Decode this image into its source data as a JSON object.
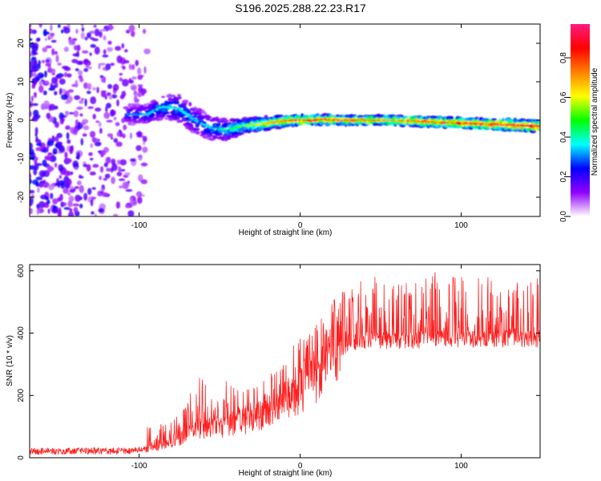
{
  "figure_title": "S196.2025.288.22.23.R17",
  "colors": {
    "axis": "#000000",
    "snr_line": "#ff2020",
    "spec_bg": "#ffffff"
  },
  "chart_data": [
    {
      "type": "heatmap",
      "name": "spectrogram",
      "xlabel": "Height of straight line (km)",
      "ylabel": "Frequency (Hz)",
      "xlim": [
        -168,
        149
      ],
      "ylim": [
        -25,
        25
      ],
      "xticks": [
        -100,
        0,
        100
      ],
      "xtick_labels": [
        "-100",
        "0",
        "100"
      ],
      "yticks": [
        -20,
        -10,
        0,
        10,
        20
      ],
      "ytick_labels": [
        "-20",
        "-10",
        "0",
        "10",
        "20"
      ],
      "noise_region_x": [
        -168,
        -95
      ],
      "ridge": {
        "x": [
          -108,
          -95,
          -85,
          -75,
          -65,
          -55,
          -45,
          -35,
          -25,
          -15,
          -5,
          5,
          15,
          25,
          40,
          55,
          70,
          85,
          100,
          115,
          130,
          145
        ],
        "y": [
          1.5,
          1.5,
          3.5,
          3.0,
          0.0,
          -2.0,
          -2.5,
          -1.5,
          -1.0,
          -0.5,
          0.0,
          0.0,
          0.2,
          0.0,
          0.0,
          0.0,
          -0.2,
          -0.5,
          -0.7,
          -1.0,
          -1.2,
          -1.5
        ],
        "amplitude": [
          0.25,
          0.3,
          0.35,
          0.35,
          0.3,
          0.35,
          0.4,
          0.5,
          0.6,
          0.7,
          0.75,
          0.8,
          0.85,
          0.8,
          0.75,
          0.7,
          0.75,
          0.8,
          0.85,
          0.85,
          0.9,
          0.9
        ],
        "spread": [
          2.5,
          2.5,
          3.0,
          3.5,
          3.5,
          3.0,
          2.5,
          2.0,
          1.8,
          1.5,
          1.4,
          1.3,
          1.2,
          1.2,
          1.2,
          1.2,
          1.3,
          1.3,
          1.3,
          1.3,
          1.4,
          1.4
        ]
      }
    },
    {
      "type": "colorbar",
      "name": "amplitude-colorbar",
      "label": "Normalized spectral amplitude",
      "range": [
        0.0,
        0.97
      ],
      "ticks": [
        0.0,
        0.2,
        0.4,
        0.6,
        0.8
      ],
      "tick_labels": [
        "0.0",
        "0.2",
        "0.4",
        "0.6",
        "0.8"
      ],
      "colormap": [
        "#ffffff",
        "#9000ff",
        "#0000ff",
        "#00ffff",
        "#00ff00",
        "#ffff00",
        "#ff8000",
        "#ff0000",
        "#ff1a80"
      ]
    },
    {
      "type": "line",
      "name": "snr",
      "xlabel": "Height of straight line (km)",
      "ylabel": "SNR (10 * v/v)",
      "xlim": [
        -168,
        149
      ],
      "ylim": [
        0,
        620
      ],
      "xticks": [
        -100,
        0,
        100
      ],
      "xtick_labels": [
        "-100",
        "0",
        "100"
      ],
      "yticks": [
        0,
        200,
        400,
        600
      ],
      "ytick_labels": [
        "0",
        "200",
        "400",
        "600"
      ],
      "envelope": {
        "x": [
          -168,
          -110,
          -95,
          -85,
          -75,
          -65,
          -55,
          -45,
          -35,
          -25,
          -15,
          -5,
          5,
          15,
          25,
          35,
          45,
          55,
          70,
          85,
          100,
          115,
          130,
          149
        ],
        "y": [
          20,
          22,
          28,
          40,
          65,
          90,
          100,
          110,
          120,
          140,
          170,
          200,
          250,
          320,
          355,
          375,
          380,
          380,
          380,
          385,
          385,
          385,
          385,
          385
        ]
      },
      "spike_peaks": {
        "x": [
          -90,
          -72,
          -62,
          -55,
          -48,
          -40,
          -30,
          -20,
          -12,
          -5,
          2,
          8,
          15,
          22,
          28,
          35,
          45,
          55,
          65,
          75,
          82,
          88,
          95,
          105,
          110,
          120,
          130,
          140,
          148
        ],
        "y": [
          100,
          160,
          280,
          200,
          290,
          220,
          230,
          260,
          300,
          370,
          390,
          420,
          460,
          520,
          540,
          560,
          590,
          550,
          570,
          560,
          610,
          570,
          600,
          560,
          620,
          560,
          570,
          560,
          580
        ]
      }
    }
  ]
}
